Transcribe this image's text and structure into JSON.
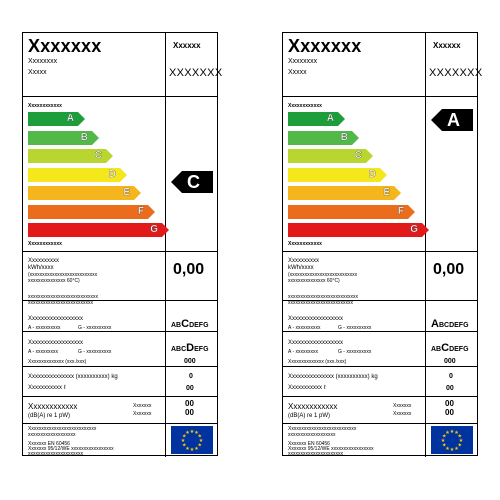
{
  "labels": [
    {
      "brand": "Xxxxxxx",
      "model": "Xxxxxx",
      "supplier_line1": "Xxxxxxxx",
      "supplier_line2": "Xxxxx",
      "supplier_code": "XXXXXXX",
      "efficiency_top": "Xxxxxxxxxxxx",
      "efficiency_bottom": "Xxxxxxxxxxxx",
      "classes": [
        "A",
        "B",
        "C",
        "D",
        "E",
        "F",
        "G"
      ],
      "rating": "C",
      "consumption_label1": "Xxxxxxxxxx",
      "consumption_label2": "kWh/xxxx",
      "consumption_note1": "(xxxxxxxxxxxxxxxxxxxxxxxxxxx",
      "consumption_note2": "xxxxxxxxxxxxxxx 60°C)",
      "consumption_value": "0,00",
      "info_line1": "xxxxxxxxxxxxxxxxxxxxxxxxxxxx",
      "info_line2": "xxxxxxxxxxxxxxxxxxxxxxxxxx",
      "wash_title": "Xxxxxxxxxxxxxxxxxx",
      "wash_sub_a": "A - xxxxxxxxxx",
      "wash_sub_g": "G - xxxxxxxxxx",
      "wash_class_pre": "AB",
      "wash_class_big": "C",
      "wash_class_post": "DEFG",
      "spin_title": "Xxxxxxxxxxxxxxxxxx",
      "spin_sub_a": "A - xxxxxxxxx",
      "spin_sub_g": "G - xxxxxxxxxx",
      "spin_class_pre": "ABC",
      "spin_class_big": "D",
      "spin_class_post": "EFG",
      "speed_label": "Xxxxxxxxxxxxxx (xxx./xxx)",
      "speed_value": "000",
      "capacity_label": "Xxxxxxxxxxxxxxx (xxxxxxxxxx) kg",
      "capacity_value": "0",
      "water_label": "Xxxxxxxxxxx ℓ",
      "water_value": "00",
      "noise_label1": "Xxxxxxxxxxxx",
      "noise_label2": "(dB(A) re 1 pW)",
      "noise_mode1": "Xxxxxxx",
      "noise_mode2": "Xxxxxxx",
      "noise_value1": "00",
      "noise_value2": "00",
      "footer_line1": "Xxxxxxxxxxxxxxxxxxxxxxxxxxx",
      "footer_line2": "xxxxxxxxxxxxxxxxxxx",
      "footer_line3": "Xxxxxxx EN 60456",
      "footer_line4": "Xxxxxxx 95/12/WE xxxxxxxxxxxxxxxxx",
      "footer_line5": "xxxxxxxxxxxxxxxxxxxxxx"
    },
    {
      "brand": "Xxxxxxx",
      "model": "Xxxxxx",
      "supplier_line1": "Xxxxxxxx",
      "supplier_line2": "Xxxxx",
      "supplier_code": "XXXXXXX",
      "efficiency_top": "Xxxxxxxxxxxx",
      "efficiency_bottom": "Xxxxxxxxxxxx",
      "classes": [
        "A",
        "B",
        "C",
        "D",
        "E",
        "F",
        "G"
      ],
      "rating": "A",
      "consumption_label1": "Xxxxxxxxxx",
      "consumption_label2": "kWh/xxxx",
      "consumption_note1": "(xxxxxxxxxxxxxxxxxxxxxxxxxxx",
      "consumption_note2": "xxxxxxxxxxxxxxx 60°C)",
      "consumption_value": "0,00",
      "info_line1": "xxxxxxxxxxxxxxxxxxxxxxxxxxxx",
      "info_line2": "xxxxxxxxxxxxxxxxxxxxxxxxxx",
      "wash_title": "Xxxxxxxxxxxxxxxxxx",
      "wash_sub_a": "A - xxxxxxxxxx",
      "wash_sub_g": "G - xxxxxxxxxx",
      "wash_class_pre": "",
      "wash_class_big": "A",
      "wash_class_post": "BCDEFG",
      "spin_title": "Xxxxxxxxxxxxxxxxxx",
      "spin_sub_a": "A - xxxxxxxxx",
      "spin_sub_g": "G - xxxxxxxxxx",
      "spin_class_pre": "AB",
      "spin_class_big": "C",
      "spin_class_post": "DEFG",
      "speed_label": "Xxxxxxxxxxxxxx (xxx./xxx)",
      "speed_value": "000",
      "capacity_label": "Xxxxxxxxxxxxxxx (xxxxxxxxxx) kg",
      "capacity_value": "0",
      "water_label": "Xxxxxxxxxxx ℓ",
      "water_value": "00",
      "noise_label1": "Xxxxxxxxxxxx",
      "noise_label2": "(dB(A) re 1 pW)",
      "noise_mode1": "Xxxxxxx",
      "noise_mode2": "Xxxxxxx",
      "noise_value1": "00",
      "noise_value2": "00",
      "footer_line1": "Xxxxxxxxxxxxxxxxxxxxxxxxxxx",
      "footer_line2": "xxxxxxxxxxxxxxxxxxx",
      "footer_line3": "Xxxxxxx EN 60456",
      "footer_line4": "Xxxxxxx 95/12/WE xxxxxxxxxxxxxxxxx",
      "footer_line5": "xxxxxxxxxxxxxxxxxxxxxx"
    }
  ],
  "colors": {
    "A": "#1e9e3a",
    "B": "#52b848",
    "C": "#b8d530",
    "D": "#f4e81c",
    "E": "#f5b51c",
    "F": "#ea6c1c",
    "G": "#e21a1a",
    "indicator": "#000000",
    "flag_blue": "#0033a0",
    "flag_stars": "#ffcc00"
  }
}
